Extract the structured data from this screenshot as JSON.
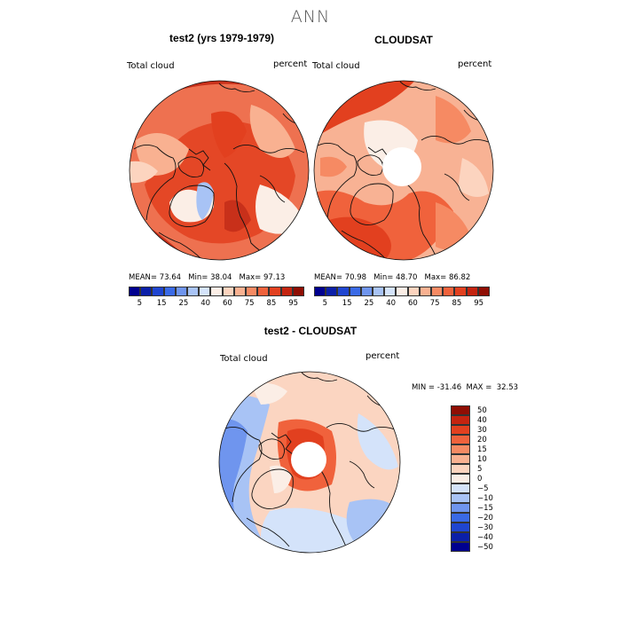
{
  "title": "ANN",
  "panels": [
    {
      "id": "model",
      "title": "test2 (yrs 1979-1979)",
      "variable": "Total cloud",
      "units": "percent",
      "stats": {
        "mean_label": "MEAN=",
        "mean": "73.64",
        "min_label": "Min=",
        "min": "38.04",
        "max_label": "Max=",
        "max": "97.13"
      },
      "pole_hole": false
    },
    {
      "id": "obs",
      "title": "CLOUDSAT",
      "variable": "Total cloud",
      "units": "percent",
      "stats": {
        "mean_label": "MEAN=",
        "mean": "70.98",
        "min_label": "Min=",
        "min": "48.70",
        "max_label": "Max=",
        "max": "86.82"
      },
      "pole_hole": true
    },
    {
      "id": "diff",
      "title": "test2 - CLOUDSAT",
      "variable": "Total cloud",
      "units": "percent",
      "range_text": "MIN = -31.46  MAX =  32.53",
      "pole_hole": true
    }
  ],
  "colorbar_top": {
    "labels": [
      "5",
      "15",
      "25",
      "40",
      "60",
      "75",
      "85",
      "95"
    ],
    "colors": [
      "#00008f",
      "#0b1fa8",
      "#1f45d0",
      "#3a6ae6",
      "#6f95ee",
      "#a8c3f5",
      "#d4e3fa",
      "#fbeee6",
      "#fcd4bf",
      "#f9b191",
      "#f68a63",
      "#f0623c",
      "#e2401f",
      "#c42410",
      "#8f0e04"
    ]
  },
  "colorbar_diff": {
    "labels": [
      "50",
      "40",
      "30",
      "20",
      "15",
      "10",
      "5",
      "0",
      "-5",
      "-10",
      "-15",
      "-20",
      "-30",
      "-40",
      "-50"
    ],
    "colors": [
      "#8f0e04",
      "#c42410",
      "#e2401f",
      "#f0623c",
      "#f68a63",
      "#f9b191",
      "#fcd4bf",
      "#fbeee6",
      "#d4e3fa",
      "#a8c3f5",
      "#6f95ee",
      "#3a6ae6",
      "#1f45d0",
      "#0b1fa8",
      "#00008f"
    ]
  },
  "map_colors": {
    "model_base": "#ee7150",
    "obs_base": "#f8b294",
    "diff_base": "#fbd5c1",
    "deep_red": "#c8301a",
    "red": "#e2401f",
    "orange": "#f0623c",
    "salmon": "#f68a63",
    "peach": "#f9b191",
    "light_peach": "#fcd4bf",
    "cream": "#fbeee6",
    "light_blue": "#d4e3fa",
    "blue": "#a8c3f5",
    "mid_blue": "#6f95ee",
    "strong_blue": "#3a6ae6",
    "coast": "#111111"
  }
}
